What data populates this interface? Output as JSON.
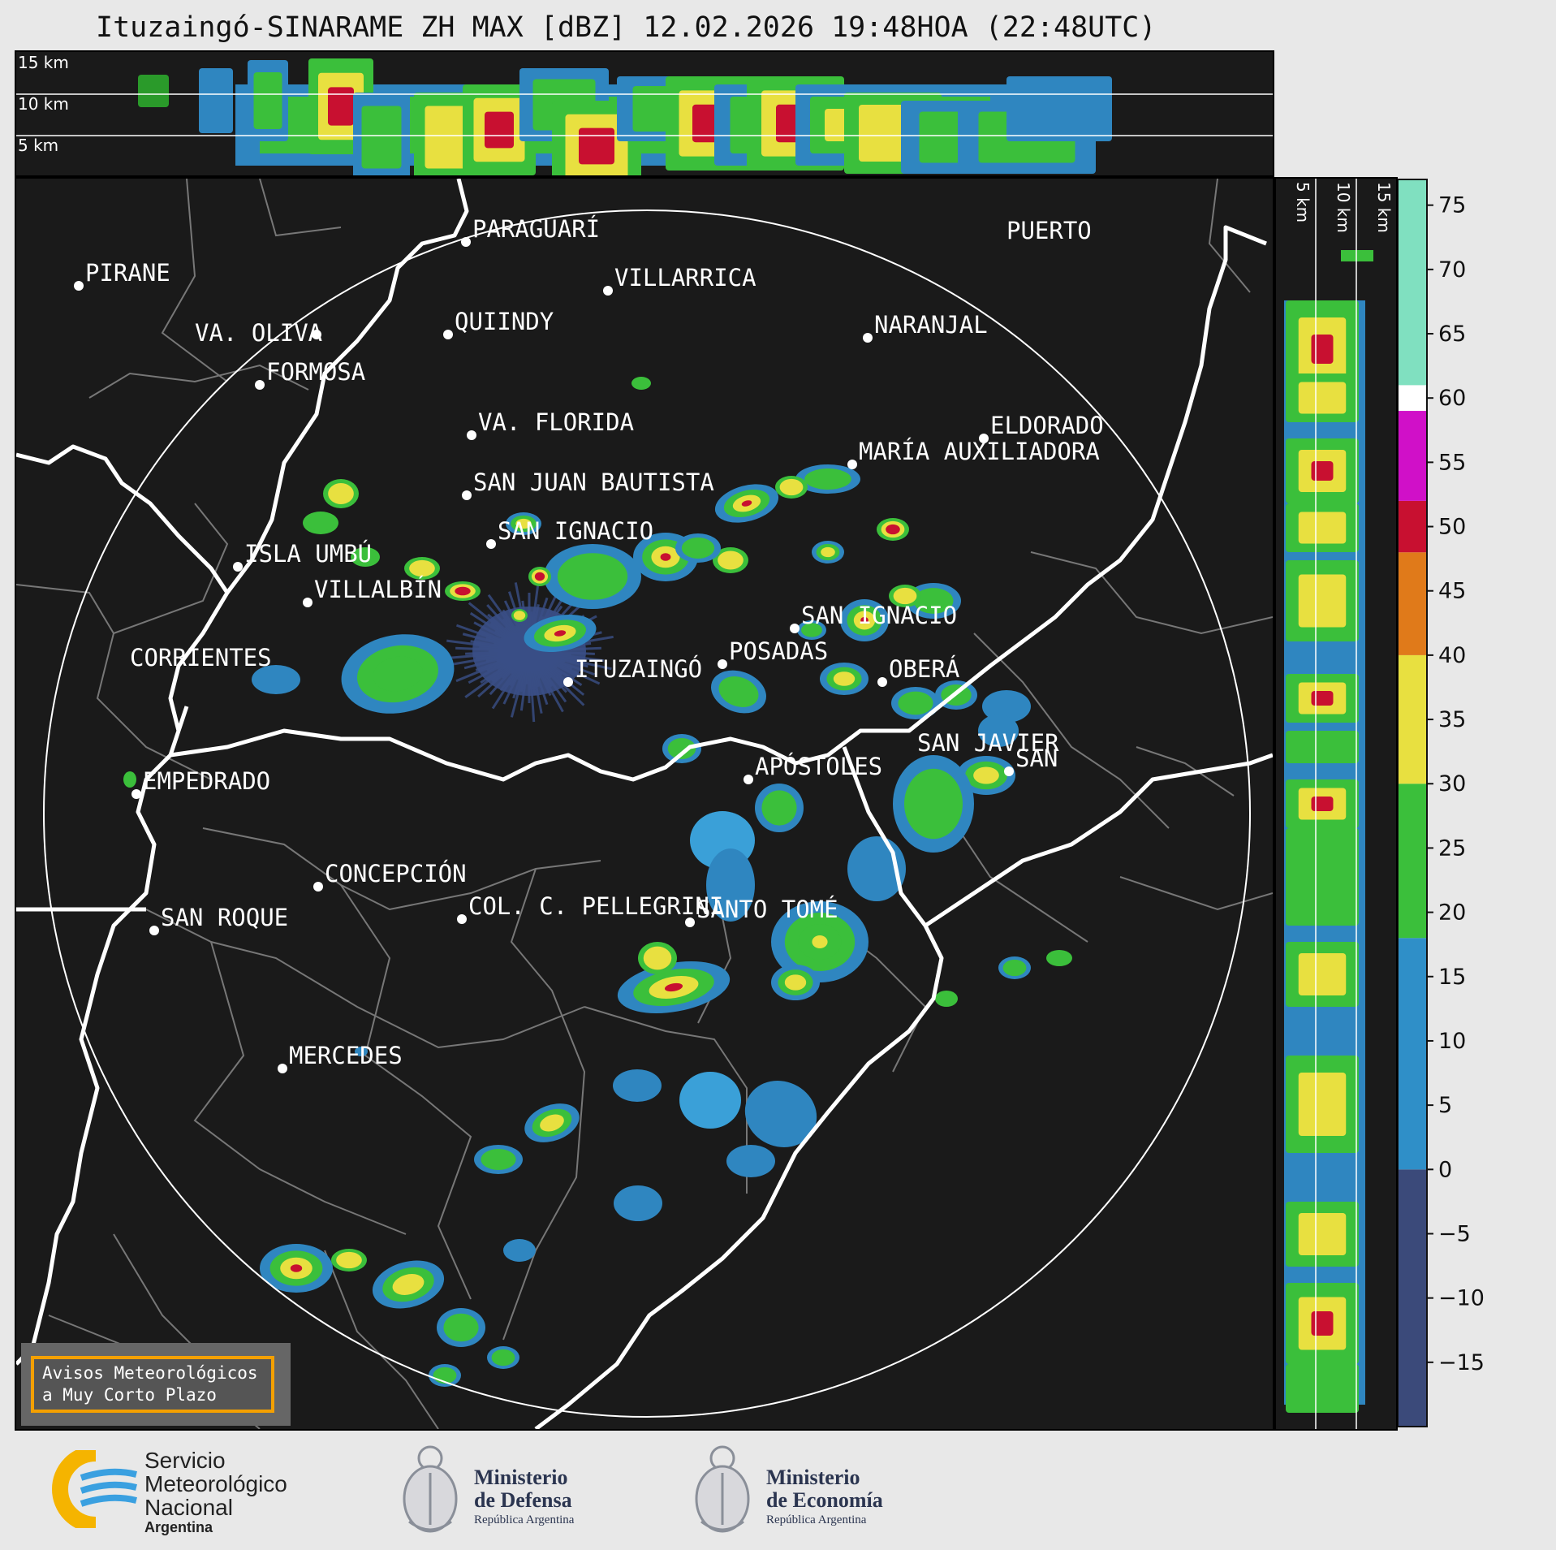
{
  "title": "Ituzaingó-SINARAME ZH MAX [dBZ] 12.02.2026 19:48HOA (22:48UTC)",
  "top_panel": {
    "altitude_labels": [
      "15 km",
      "10 km",
      "5 km"
    ]
  },
  "side_panel": {
    "altitude_labels": [
      "5 km",
      "10 km",
      "15 km"
    ]
  },
  "colorbar": {
    "unit": "dBZ",
    "ticks": [
      "75",
      "70",
      "65",
      "60",
      "55",
      "50",
      "45",
      "40",
      "35",
      "30",
      "25",
      "20",
      "15",
      "10",
      "5",
      "0",
      "−5",
      "−10",
      "−15"
    ],
    "tick_values": [
      75,
      70,
      65,
      60,
      55,
      50,
      45,
      40,
      35,
      30,
      25,
      20,
      15,
      10,
      5,
      0,
      -5,
      -10,
      -15
    ],
    "range": [
      -20,
      77
    ],
    "colors": [
      {
        "from": -20,
        "to": 0,
        "color": "#3b4a7a"
      },
      {
        "from": 0,
        "to": 18,
        "color": "#2f8fc8"
      },
      {
        "from": 18,
        "to": 30,
        "color": "#3bbf3b"
      },
      {
        "from": 30,
        "to": 40,
        "color": "#e8e040"
      },
      {
        "from": 40,
        "to": 48,
        "color": "#e07a1a"
      },
      {
        "from": 48,
        "to": 52,
        "color": "#c81030"
      },
      {
        "from": 52,
        "to": 59,
        "color": "#d010c8"
      },
      {
        "from": 59,
        "to": 61,
        "color": "#ffffff"
      },
      {
        "from": 61,
        "to": 77,
        "color": "#80e0c0"
      }
    ]
  },
  "radar": {
    "name": "ITUZAINGÓ"
  },
  "cities": [
    {
      "name": "PIRANE"
    },
    {
      "name": "PARAGUARÍ"
    },
    {
      "name": "VILLARRICA"
    },
    {
      "name": "VA. OLIVA"
    },
    {
      "name": "QUIINDY"
    },
    {
      "name": "NARANJAL"
    },
    {
      "name": "FORMOSA"
    },
    {
      "name": "VA. FLORIDA"
    },
    {
      "name": "ELDORADO"
    },
    {
      "name": "MARÍA AUXILIADORA"
    },
    {
      "name": "SAN JUAN BAUTISTA"
    },
    {
      "name": "SAN IGNACIO"
    },
    {
      "name": "ISLA UMBÚ"
    },
    {
      "name": "VILLALBÍN"
    },
    {
      "name": "SAN IGNACIO"
    },
    {
      "name": "POSADAS"
    },
    {
      "name": "CORRIENTES"
    },
    {
      "name": "ITUZAINGÓ"
    },
    {
      "name": "OBERÁ"
    },
    {
      "name": "APÓSTOLES"
    },
    {
      "name": "SAN JAVIER"
    },
    {
      "name": "SAN"
    },
    {
      "name": "EMPEDRADO"
    },
    {
      "name": "CONCEPCIÓN"
    },
    {
      "name": "COL. C. PELLEGRINI"
    },
    {
      "name": "SANTO TOMÉ"
    },
    {
      "name": "SAN ROQUE"
    },
    {
      "name": "MERCEDES"
    },
    {
      "name": "PUERTO"
    }
  ],
  "notice": {
    "line1": "Avisos Meteorológicos",
    "line2": "a Muy Corto Plazo"
  },
  "footer": {
    "smn": {
      "line1": "Servicio",
      "line2": "Meteorológico",
      "line3": "Nacional",
      "line4": "Argentina"
    },
    "defensa": {
      "line1": "Ministerio",
      "line2": "de Defensa",
      "line3": "República Argentina"
    },
    "economia": {
      "line1": "Ministerio",
      "line2": "de Economía",
      "line3": "República Argentina"
    }
  }
}
